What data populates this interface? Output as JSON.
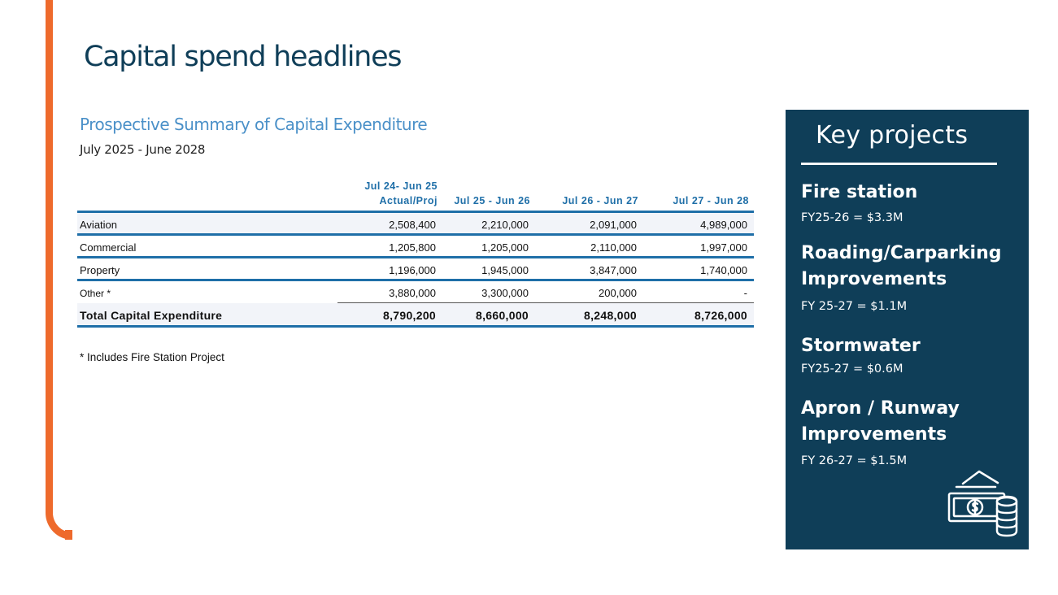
{
  "slide": {
    "title": "Capital spend headlines"
  },
  "summary": {
    "subtitle": "Prospective Summary of Capital Expenditure",
    "period": "July 2025 - June 2028",
    "columns": [
      {
        "line1": "Jul 24- Jun 25",
        "line2": "Actual/Proj"
      },
      {
        "line1": "Jul 25 - Jun 26"
      },
      {
        "line1": "Jul 26 - Jun 27"
      },
      {
        "line1": "Jul 27 - Jun 28"
      }
    ],
    "rows": [
      {
        "label": "Aviation",
        "values": [
          "2,508,400",
          "2,210,000",
          "2,091,000",
          "4,989,000"
        ]
      },
      {
        "label": "Commercial",
        "values": [
          "1,205,800",
          "1,205,000",
          "2,110,000",
          "1,997,000"
        ]
      },
      {
        "label": "Property",
        "values": [
          "1,196,000",
          "1,945,000",
          "3,847,000",
          "1,740,000"
        ]
      },
      {
        "label": "Other *",
        "values": [
          "3,880,000",
          "3,300,000",
          "200,000",
          "-"
        ]
      }
    ],
    "total": {
      "label": "Total Capital Expenditure",
      "values": [
        "8,790,200",
        "8,660,000",
        "8,248,000",
        "8,726,000"
      ]
    },
    "footnote": "* Includes Fire Station Project"
  },
  "key_projects": {
    "title": "Key projects",
    "items": [
      {
        "name": "Fire station",
        "value": "FY25-26  = $3.3M"
      },
      {
        "name": "Roading/Carparking Improvements",
        "value": "FY 25-27 = $1.1M"
      },
      {
        "name": "Stormwater",
        "value": "FY25-27 = $0.6M"
      },
      {
        "name": "Apron / Runway Improvements",
        "value": "FY 26-27 = $1.5M"
      }
    ],
    "icon": "money-coins-icon"
  },
  "colors": {
    "accent": "#ee6a2c",
    "title": "#0f3e58",
    "table_blue": "#1f6fa8",
    "panel": "#0f3e58"
  }
}
